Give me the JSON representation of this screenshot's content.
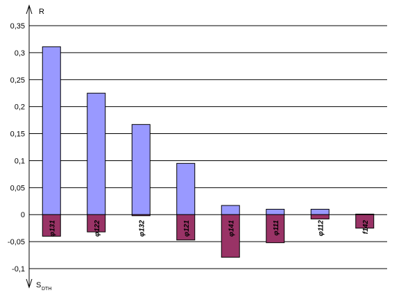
{
  "chart_data": {
    "type": "bar",
    "categories": [
      "φ131",
      "φ122",
      "φ132",
      "φ121",
      "φ141",
      "φ111",
      "φ112",
      "f142"
    ],
    "series": [
      {
        "values": [
          0.311,
          0.225,
          0.167,
          0.095,
          0.017,
          0.01,
          0.01,
          0.001
        ],
        "color": "#9999ff"
      },
      {
        "values": [
          -0.04,
          -0.032,
          -0.002,
          -0.047,
          -0.079,
          -0.052,
          -0.008,
          -0.025
        ],
        "color": "#993366"
      }
    ],
    "ylim": [
      -0.1,
      0.35
    ],
    "yticks": [
      "-0,1",
      "-0,05",
      "0",
      "0,05",
      "0,1",
      "0,15",
      "0,2",
      "0,25",
      "0,3",
      "0,35"
    ],
    "ytick_values": [
      -0.1,
      -0.05,
      0,
      0.05,
      0.1,
      0.15,
      0.2,
      0.25,
      0.3,
      0.35
    ],
    "y_axis_top_label": "R",
    "y_axis_bottom_label": "S",
    "y_axis_bottom_subscript": "DTH",
    "grid": true,
    "gridline_color": "#000000",
    "bar_outline_color": "#000000"
  }
}
